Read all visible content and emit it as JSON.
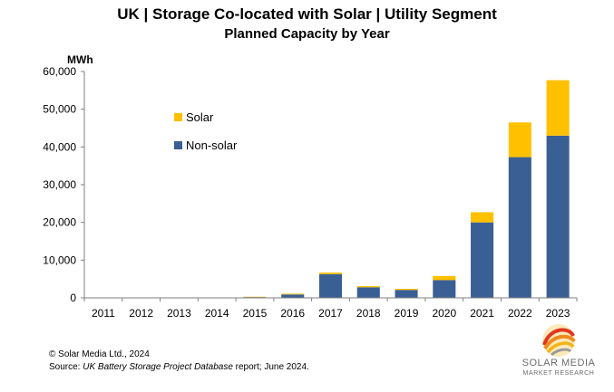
{
  "chart_data": {
    "type": "bar",
    "stacked": true,
    "title": "UK | Storage Co-located with Solar | Utility Segment",
    "subtitle": "Planned Capacity by Year",
    "ylabel": "MWh",
    "xlabel": "",
    "ylim": [
      0,
      60000
    ],
    "yticks": [
      0,
      10000,
      20000,
      30000,
      40000,
      50000,
      60000
    ],
    "ytick_labels": [
      "0",
      "10,000",
      "20,000",
      "30,000",
      "40,000",
      "50,000",
      "60,000"
    ],
    "grid": false,
    "legend_position": "upper-left",
    "categories": [
      "2011",
      "2012",
      "2013",
      "2014",
      "2015",
      "2016",
      "2017",
      "2018",
      "2019",
      "2020",
      "2021",
      "2022",
      "2023"
    ],
    "series": [
      {
        "name": "Non-solar",
        "color": "#3a5f94",
        "values": [
          0,
          0,
          0,
          0,
          200,
          900,
          6300,
          2800,
          2100,
          4700,
          20000,
          37300,
          43000
        ]
      },
      {
        "name": "Solar",
        "color": "#ffc000",
        "values": [
          0,
          0,
          0,
          0,
          100,
          200,
          400,
          300,
          300,
          1100,
          2700,
          9200,
          14700
        ]
      }
    ]
  },
  "footer": {
    "copyright": "© Solar Media Ltd., 2024",
    "source_prefix": "Source: ",
    "source_title": "UK Battery Storage Project Database",
    "source_suffix": " report; June 2024."
  },
  "logo": {
    "name": "SOLAR MEDIA",
    "tagline": "MARKET RESEARCH"
  }
}
